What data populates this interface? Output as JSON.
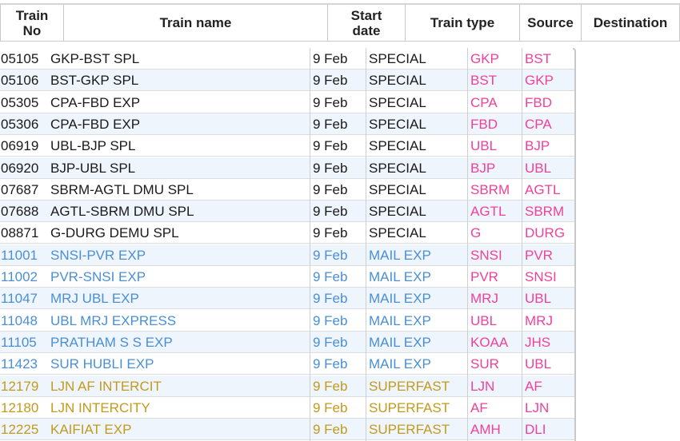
{
  "table": {
    "headers": [
      "Train\nNo",
      "Train name",
      "Start\ndate",
      "Train type",
      "Source",
      "Destination"
    ],
    "rows": [
      {
        "no": "05105",
        "name": "GKP-BST SPL",
        "date": "9 Feb",
        "type": "SPECIAL",
        "src": "GKP",
        "dst": "BST",
        "cat": "black"
      },
      {
        "no": "05106",
        "name": "BST-GKP SPL",
        "date": "9 Feb",
        "type": "SPECIAL",
        "src": "BST",
        "dst": "GKP",
        "cat": "black"
      },
      {
        "no": "05305",
        "name": "CPA-FBD EXP",
        "date": "9 Feb",
        "type": "SPECIAL",
        "src": "CPA",
        "dst": "FBD",
        "cat": "black"
      },
      {
        "no": "05306",
        "name": "CPA-FBD EXP",
        "date": "9 Feb",
        "type": "SPECIAL",
        "src": "FBD",
        "dst": "CPA",
        "cat": "black"
      },
      {
        "no": "06919",
        "name": "UBL-BJP SPL",
        "date": "9 Feb",
        "type": "SPECIAL",
        "src": "UBL",
        "dst": "BJP",
        "cat": "black"
      },
      {
        "no": "06920",
        "name": "BJP-UBL SPL",
        "date": "9 Feb",
        "type": "SPECIAL",
        "src": "BJP",
        "dst": "UBL",
        "cat": "black"
      },
      {
        "no": "07687",
        "name": "SBRM-AGTL DMU SPL",
        "date": "9 Feb",
        "type": "SPECIAL",
        "src": "SBRM",
        "dst": "AGTL",
        "cat": "black"
      },
      {
        "no": "07688",
        "name": "AGTL-SBRM DMU SPL",
        "date": "9 Feb",
        "type": "SPECIAL",
        "src": "AGTL",
        "dst": "SBRM",
        "cat": "black"
      },
      {
        "no": "08871",
        "name": "G-DURG DEMU SPL",
        "date": "9 Feb",
        "type": "SPECIAL",
        "src": "G",
        "dst": "DURG",
        "cat": "black"
      },
      {
        "no": "11001",
        "name": "SNSI-PVR EXP",
        "date": "9 Feb",
        "type": "MAIL EXP",
        "src": "SNSI",
        "dst": "PVR",
        "cat": "blue"
      },
      {
        "no": "11002",
        "name": "PVR-SNSI EXP",
        "date": "9 Feb",
        "type": "MAIL EXP",
        "src": "PVR",
        "dst": "SNSI",
        "cat": "blue"
      },
      {
        "no": "11047",
        "name": "MRJ UBL EXP",
        "date": "9 Feb",
        "type": "MAIL EXP",
        "src": "MRJ",
        "dst": "UBL",
        "cat": "blue"
      },
      {
        "no": "11048",
        "name": "UBL MRJ EXPRESS",
        "date": "9 Feb",
        "type": "MAIL EXP",
        "src": "UBL",
        "dst": "MRJ",
        "cat": "blue"
      },
      {
        "no": "11105",
        "name": "PRATHAM S S EXP",
        "date": "9 Feb",
        "type": "MAIL EXP",
        "src": "KOAA",
        "dst": "JHS",
        "cat": "blue"
      },
      {
        "no": "11423",
        "name": "SUR HUBLI EXP",
        "date": "9 Feb",
        "type": "MAIL EXP",
        "src": "SUR",
        "dst": "UBL",
        "cat": "blue"
      },
      {
        "no": "12179",
        "name": "LJN AF INTERCIT",
        "date": "9 Feb",
        "type": "SUPERFAST",
        "src": "LJN",
        "dst": "AF",
        "cat": "gold"
      },
      {
        "no": "12180",
        "name": "LJN INTERCITY",
        "date": "9 Feb",
        "type": "SUPERFAST",
        "src": "AF",
        "dst": "LJN",
        "cat": "gold"
      },
      {
        "no": "12225",
        "name": "KAIFIAT EXP",
        "date": "9 Feb",
        "type": "SUPERFAST",
        "src": "AMH",
        "dst": "DLI",
        "cat": "gold"
      }
    ]
  },
  "colors": {
    "special": "#1a1a1a",
    "mail_exp": "#4a8fd6",
    "superfast": "#c39a1c",
    "station_code": "#f0419b",
    "alt_row_bg": "#eef5fc"
  }
}
